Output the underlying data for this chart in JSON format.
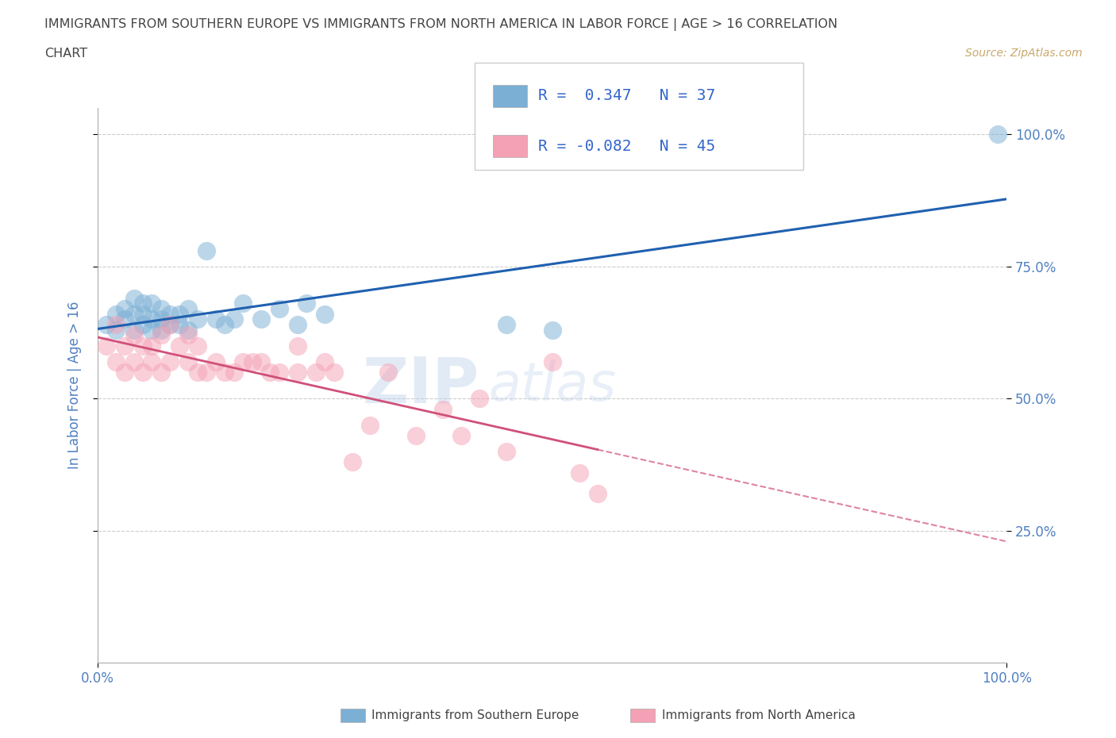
{
  "title_line1": "IMMIGRANTS FROM SOUTHERN EUROPE VS IMMIGRANTS FROM NORTH AMERICA IN LABOR FORCE | AGE > 16 CORRELATION",
  "title_line2": "CHART",
  "source_text": "Source: ZipAtlas.com",
  "ylabel": "In Labor Force | Age > 16",
  "xlim": [
    0.0,
    1.0
  ],
  "ylim": [
    0.0,
    1.05
  ],
  "ytick_labels": [
    "25.0%",
    "50.0%",
    "75.0%",
    "100.0%"
  ],
  "ytick_positions": [
    0.25,
    0.5,
    0.75,
    1.0
  ],
  "blue_R": 0.347,
  "blue_N": 37,
  "pink_R": -0.082,
  "pink_N": 45,
  "blue_color": "#7bafd4",
  "pink_color": "#f4a0b5",
  "blue_line_color": "#2060b0",
  "pink_line_color": "#d0507a",
  "watermark_zip": "ZIP",
  "watermark_atlas": "atlas",
  "legend_blue_label": "Immigrants from Southern Europe",
  "legend_pink_label": "Immigrants from North America",
  "blue_scatter_x": [
    0.01,
    0.02,
    0.02,
    0.03,
    0.03,
    0.04,
    0.04,
    0.04,
    0.05,
    0.05,
    0.05,
    0.06,
    0.06,
    0.06,
    0.07,
    0.07,
    0.07,
    0.08,
    0.08,
    0.09,
    0.09,
    0.1,
    0.1,
    0.11,
    0.12,
    0.13,
    0.14,
    0.15,
    0.16,
    0.18,
    0.2,
    0.22,
    0.23,
    0.25,
    0.45,
    0.5,
    0.99
  ],
  "blue_scatter_y": [
    0.64,
    0.63,
    0.66,
    0.65,
    0.67,
    0.63,
    0.66,
    0.69,
    0.64,
    0.66,
    0.68,
    0.63,
    0.65,
    0.68,
    0.63,
    0.65,
    0.67,
    0.64,
    0.66,
    0.64,
    0.66,
    0.63,
    0.67,
    0.65,
    0.78,
    0.65,
    0.64,
    0.65,
    0.68,
    0.65,
    0.67,
    0.64,
    0.68,
    0.66,
    0.64,
    0.63,
    1.0
  ],
  "pink_scatter_x": [
    0.01,
    0.02,
    0.02,
    0.03,
    0.03,
    0.04,
    0.04,
    0.05,
    0.05,
    0.06,
    0.06,
    0.07,
    0.07,
    0.08,
    0.08,
    0.09,
    0.1,
    0.1,
    0.11,
    0.11,
    0.12,
    0.13,
    0.14,
    0.15,
    0.16,
    0.17,
    0.18,
    0.19,
    0.2,
    0.22,
    0.22,
    0.24,
    0.25,
    0.26,
    0.28,
    0.3,
    0.32,
    0.35,
    0.38,
    0.4,
    0.42,
    0.45,
    0.5,
    0.53,
    0.55
  ],
  "pink_scatter_y": [
    0.6,
    0.64,
    0.57,
    0.6,
    0.55,
    0.62,
    0.57,
    0.6,
    0.55,
    0.6,
    0.57,
    0.62,
    0.55,
    0.64,
    0.57,
    0.6,
    0.62,
    0.57,
    0.6,
    0.55,
    0.55,
    0.57,
    0.55,
    0.55,
    0.57,
    0.57,
    0.57,
    0.55,
    0.55,
    0.6,
    0.55,
    0.55,
    0.57,
    0.55,
    0.38,
    0.45,
    0.55,
    0.43,
    0.48,
    0.43,
    0.5,
    0.4,
    0.57,
    0.36,
    0.32
  ],
  "background_color": "#ffffff",
  "grid_color": "#cccccc",
  "title_color": "#444444",
  "source_color": "#c8a86b",
  "axis_label_color": "#5080c0",
  "tick_label_color": "#5080c0",
  "legend_R_color": "#3366cc",
  "legend_N_color": "#3366cc"
}
